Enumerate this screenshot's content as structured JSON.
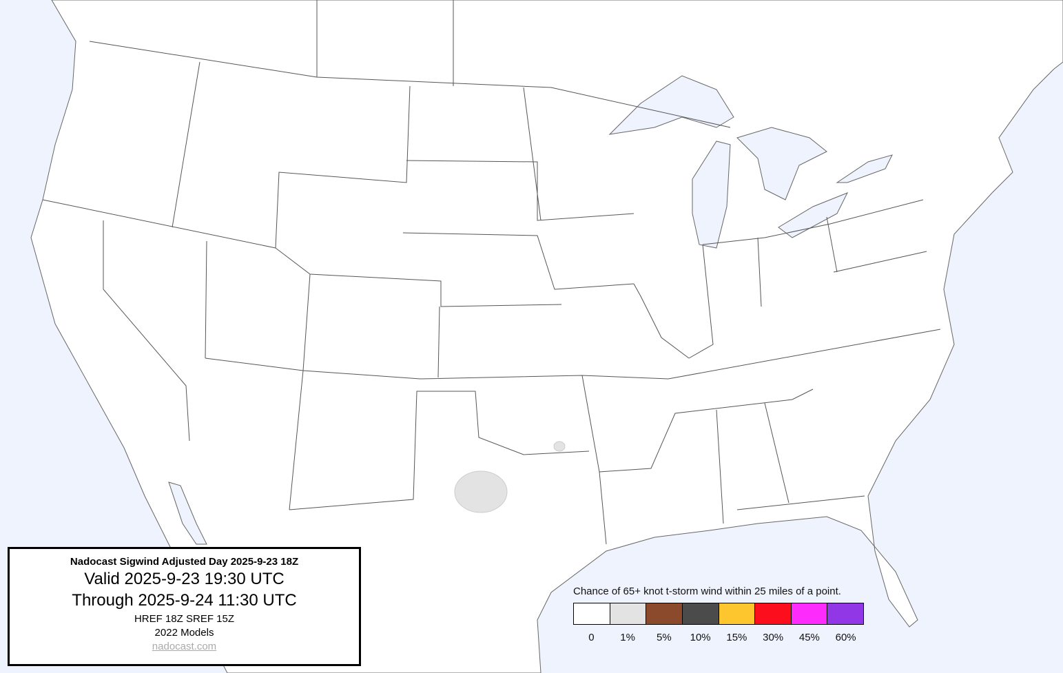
{
  "map": {
    "ocean_color": "#eef3fd",
    "land_color": "#ffffff",
    "border_color": "#555555",
    "forecast_areas": [
      {
        "category": "1%",
        "color": "#e3e3e3"
      }
    ]
  },
  "info_box": {
    "title": "Nadocast Sigwind Adjusted Day 2025-9-23 18Z",
    "valid": "Valid 2025-9-23 19:30 UTC",
    "through": "Through 2025-9-24 11:30 UTC",
    "models": "HREF 18Z SREF 15Z",
    "model_year": "2022 Models",
    "link": "nadocast.com"
  },
  "legend": {
    "title": "Chance of 65+ knot t-storm wind within 25 miles of a point.",
    "items": [
      {
        "label": "0",
        "color": "#ffffff"
      },
      {
        "label": "1%",
        "color": "#e3e3e3"
      },
      {
        "label": "5%",
        "color": "#8b4a2b"
      },
      {
        "label": "10%",
        "color": "#4b4b4b"
      },
      {
        "label": "15%",
        "color": "#fec62e"
      },
      {
        "label": "30%",
        "color": "#fd0e1d"
      },
      {
        "label": "45%",
        "color": "#fd2cfd"
      },
      {
        "label": "60%",
        "color": "#9137e6"
      }
    ]
  }
}
